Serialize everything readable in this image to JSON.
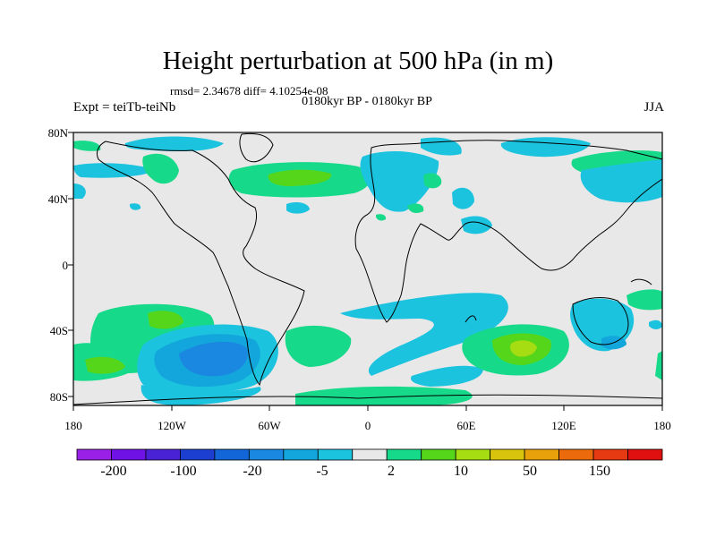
{
  "title": "Height perturbation at 500 hPa (in m)",
  "stats": "rmsd= 2.34678 diff= 4.10254e-08",
  "period": "0180kyr BP - 0180kyr BP",
  "experiment": "Expt = teiTb-teiNb",
  "season": "JJA",
  "axes": {
    "lat_labels": [
      "80N",
      "40N",
      "0",
      "40S",
      "80S"
    ],
    "lon_labels": [
      "180",
      "120W",
      "60W",
      "0",
      "60E",
      "120E",
      "180"
    ]
  },
  "colorbar": {
    "labels": [
      "-200",
      "-100",
      "-20",
      "-5",
      "2",
      "10",
      "50",
      "150"
    ],
    "colors": [
      "#9a20e8",
      "#6f12e6",
      "#4a22d6",
      "#1c3fd1",
      "#1266d8",
      "#1a88e0",
      "#13a6dc",
      "#1cc3de",
      "#e8e8e8",
      "#17d98a",
      "#55d61a",
      "#a6dc12",
      "#d8c40c",
      "#e8a10a",
      "#ea6a0c",
      "#e63b12",
      "#e01010"
    ]
  },
  "colors": {
    "ocean_land_fill": "#e8e8e8",
    "neg_light": "#1cc3de",
    "neg_mid": "#13a6dc",
    "neg_dark": "#1a88e0",
    "pos_light": "#17d98a",
    "pos_mid": "#55d61a",
    "pos_strong": "#a6dc12"
  }
}
